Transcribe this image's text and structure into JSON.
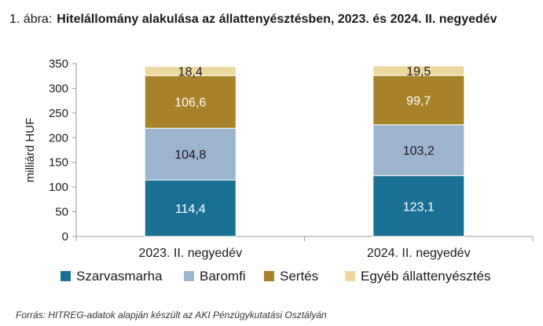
{
  "figure": {
    "label": "1. ábra:",
    "title": "Hitelállomány alakulása az állattenyésztésben, 2023. és 2024. II. negyedév",
    "source": "Forrás: HITREG-adatok alapján készült az AKI Pénzügykutatási Osztályán"
  },
  "chart_data": {
    "type": "bar",
    "stacked": true,
    "title": "Hitelállomány alakulása az állattenyésztésben, 2023. és 2024. II. negyedév",
    "xlabel": "",
    "ylabel": "milliárd HUF",
    "ylim": [
      0,
      350
    ],
    "yticks": [
      0,
      50,
      100,
      150,
      200,
      250,
      300,
      350
    ],
    "grid": false,
    "legend_position": "bottom",
    "categories": [
      "2023. II. negyedév",
      "2024. II. negyedév"
    ],
    "series": [
      {
        "name": "Szarvasmarha",
        "values": [
          114.4,
          123.1
        ],
        "labels": [
          "114,4",
          "123,1"
        ],
        "color": "#1a7092",
        "label_color": "#ffffff"
      },
      {
        "name": "Baromfi",
        "values": [
          104.8,
          103.2
        ],
        "labels": [
          "104,8",
          "103,2"
        ],
        "color": "#9cb4ce",
        "label_color": "#1a1a1a"
      },
      {
        "name": "Sertés",
        "values": [
          106.6,
          99.7
        ],
        "labels": [
          "106,6",
          "99,7"
        ],
        "color": "#a88228",
        "label_color": "#ffffff"
      },
      {
        "name": "Egyéb állattenyésztés",
        "values": [
          18.4,
          19.5
        ],
        "labels": [
          "18,4",
          "19,5"
        ],
        "color": "#ecd79e",
        "label_color": "#1a1a1a"
      }
    ]
  }
}
